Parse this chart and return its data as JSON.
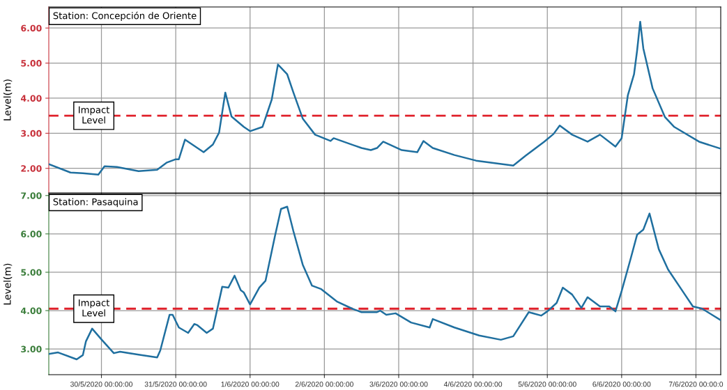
{
  "chart_data": [
    {
      "type": "line",
      "title": "Station: Concepción de Oriente",
      "ylabel": "Level(m)",
      "tick_labels": "y",
      "grid": true,
      "marker": "none",
      "line_style": "solid",
      "xlim": [
        "2020-05-29T07:00",
        "2020-06-07T08:00"
      ],
      "xticks": [
        {
          "value": "2020-05-30T00:00",
          "label": null
        },
        {
          "value": "2020-05-31T00:00",
          "label": null
        },
        {
          "value": "2020-06-01T00:00",
          "label": null
        },
        {
          "value": "2020-06-02T00:00",
          "label": null
        },
        {
          "value": "2020-06-03T00:00",
          "label": null
        },
        {
          "value": "2020-06-04T00:00",
          "label": null
        },
        {
          "value": "2020-06-05T00:00",
          "label": null
        },
        {
          "value": "2020-06-06T00:00",
          "label": null
        },
        {
          "value": "2020-06-07T00:00",
          "label": null
        }
      ],
      "ylim": [
        1.3,
        6.6
      ],
      "yticks": [
        {
          "value": 2,
          "label": "2.00"
        },
        {
          "value": 3,
          "label": "3.00"
        },
        {
          "value": 4,
          "label": "4.00"
        },
        {
          "value": 5,
          "label": "5.00"
        },
        {
          "value": 6,
          "label": "6.00"
        }
      ],
      "ref_lines": [
        {
          "axis": "y",
          "value": 3.5,
          "label": "Impact\nLevel",
          "color": "#e0202a",
          "line_style": "dashed"
        }
      ],
      "x": [
        "2020-05-29T07:00",
        "2020-05-29T14:00",
        "2020-05-29T18:00",
        "2020-05-29T23:00",
        "2020-05-30T01:00",
        "2020-05-30T05:00",
        "2020-05-30T12:00",
        "2020-05-30T18:00",
        "2020-05-30T21:00",
        "2020-05-31T00:00",
        "2020-05-31T01:00",
        "2020-05-31T03:00",
        "2020-05-31T09:00",
        "2020-05-31T12:00",
        "2020-05-31T14:00",
        "2020-05-31T16:00",
        "2020-05-31T18:00",
        "2020-05-31T22:00",
        "2020-06-01T00:00",
        "2020-06-01T04:00",
        "2020-06-01T07:00",
        "2020-06-01T09:00",
        "2020-06-01T12:00",
        "2020-06-01T14:00",
        "2020-06-01T17:00",
        "2020-06-01T21:00",
        "2020-06-02T02:00",
        "2020-06-02T03:00",
        "2020-06-02T12:00",
        "2020-06-02T15:00",
        "2020-06-02T17:00",
        "2020-06-02T19:00",
        "2020-06-03T01:00",
        "2020-06-03T06:00",
        "2020-06-03T08:00",
        "2020-06-03T11:00",
        "2020-06-03T18:00",
        "2020-06-04T01:00",
        "2020-06-04T13:00",
        "2020-06-04T17:00",
        "2020-06-04T23:00",
        "2020-06-05T02:00",
        "2020-06-05T04:00",
        "2020-06-05T08:00",
        "2020-06-05T13:00",
        "2020-06-05T17:00",
        "2020-06-05T22:00",
        "2020-06-06T00:00",
        "2020-06-06T02:00",
        "2020-06-06T04:00",
        "2020-06-06T05:00",
        "2020-06-06T06:00",
        "2020-06-06T07:00",
        "2020-06-06T10:00",
        "2020-06-06T14:00",
        "2020-06-06T17:00",
        "2020-06-07T01:00",
        "2020-06-07T08:00"
      ],
      "series": [
        {
          "color": "#1f6f9f",
          "values": [
            2.12,
            1.88,
            1.86,
            1.82,
            2.06,
            2.04,
            1.92,
            1.96,
            2.16,
            2.26,
            2.26,
            2.82,
            2.46,
            2.68,
            3.02,
            4.16,
            3.48,
            3.18,
            3.06,
            3.18,
            3.96,
            4.96,
            4.68,
            4.16,
            3.42,
            2.96,
            2.78,
            2.86,
            2.58,
            2.52,
            2.58,
            2.76,
            2.52,
            2.46,
            2.78,
            2.58,
            2.38,
            2.22,
            2.08,
            2.36,
            2.76,
            2.98,
            3.22,
            2.96,
            2.76,
            2.96,
            2.62,
            2.86,
            4.08,
            4.68,
            5.36,
            6.18,
            5.42,
            4.28,
            3.46,
            3.18,
            2.76,
            2.56
          ]
        }
      ]
    },
    {
      "type": "line",
      "title": "Station: Pasaquina",
      "ylabel": "Level(m)",
      "grid": true,
      "marker": "none",
      "line_style": "solid",
      "xlim": [
        "2020-05-29T07:00",
        "2020-06-07T08:00"
      ],
      "xticks": [
        {
          "value": "2020-05-30T00:00",
          "label": "30/5/2020 00:00:00"
        },
        {
          "value": "2020-05-31T00:00",
          "label": "31/5/2020 00:00:00"
        },
        {
          "value": "2020-06-01T00:00",
          "label": "1/6/2020 00:00:00"
        },
        {
          "value": "2020-06-02T00:00",
          "label": "2/6/2020 00:00:00"
        },
        {
          "value": "2020-06-03T00:00",
          "label": "3/6/2020 00:00:00"
        },
        {
          "value": "2020-06-04T00:00",
          "label": "4/6/2020 00:00:00"
        },
        {
          "value": "2020-06-05T00:00",
          "label": "5/6/2020 00:00:00"
        },
        {
          "value": "2020-06-06T00:00",
          "label": "6/6/2020 00:00:00"
        },
        {
          "value": "2020-06-07T00:00",
          "label": "7/6/2020 00:00:0"
        }
      ],
      "ylim": [
        2.33,
        7.05
      ],
      "yticks": [
        {
          "value": 3,
          "label": "3.00"
        },
        {
          "value": 4,
          "label": "4.00"
        },
        {
          "value": 5,
          "label": "5.00"
        },
        {
          "value": 6,
          "label": "6.00"
        },
        {
          "value": 7,
          "label": "7.00"
        }
      ],
      "ref_lines": [
        {
          "axis": "y",
          "value": 4.05,
          "label": "Impact\nLevel",
          "color": "#e0202a",
          "line_style": "dashed"
        }
      ],
      "x": [
        "2020-05-29T07:00",
        "2020-05-29T10:00",
        "2020-05-29T16:00",
        "2020-05-29T18:00",
        "2020-05-29T19:00",
        "2020-05-29T21:00",
        "2020-05-30T00:00",
        "2020-05-30T04:00",
        "2020-05-30T06:00",
        "2020-05-30T12:00",
        "2020-05-30T18:00",
        "2020-05-30T19:00",
        "2020-05-30T22:00",
        "2020-05-30T23:00",
        "2020-05-31T01:00",
        "2020-05-31T04:00",
        "2020-05-31T06:00",
        "2020-05-31T07:00",
        "2020-05-31T10:00",
        "2020-05-31T12:00",
        "2020-05-31T15:00",
        "2020-05-31T17:00",
        "2020-05-31T19:00",
        "2020-05-31T21:00",
        "2020-05-31T22:00",
        "2020-06-01T00:00",
        "2020-06-01T03:00",
        "2020-06-01T05:00",
        "2020-06-01T08:00",
        "2020-06-01T10:00",
        "2020-06-01T12:00",
        "2020-06-01T14:00",
        "2020-06-01T17:00",
        "2020-06-01T20:00",
        "2020-06-01T23:00",
        "2020-06-02T04:00",
        "2020-06-02T09:00",
        "2020-06-02T12:00",
        "2020-06-02T17:00",
        "2020-06-02T18:00",
        "2020-06-02T20:00",
        "2020-06-02T23:00",
        "2020-06-03T04:00",
        "2020-06-03T10:00",
        "2020-06-03T11:00",
        "2020-06-03T18:00",
        "2020-06-04T02:00",
        "2020-06-04T09:00",
        "2020-06-04T13:00",
        "2020-06-04T18:00",
        "2020-06-04T22:00",
        "2020-06-05T00:00",
        "2020-06-05T03:00",
        "2020-06-05T05:00",
        "2020-06-05T08:00",
        "2020-06-05T11:00",
        "2020-06-05T13:00",
        "2020-06-05T17:00",
        "2020-06-05T20:00",
        "2020-06-05T22:00",
        "2020-06-06T00:00",
        "2020-06-06T03:00",
        "2020-06-06T05:00",
        "2020-06-06T07:00",
        "2020-06-06T09:00",
        "2020-06-06T12:00",
        "2020-06-06T15:00",
        "2020-06-06T20:00",
        "2020-06-06T23:00",
        "2020-06-07T02:00",
        "2020-06-07T08:00"
      ],
      "series": [
        {
          "color": "#1f6f9f",
          "values": [
            2.87,
            2.91,
            2.73,
            2.84,
            3.2,
            3.53,
            3.25,
            2.89,
            2.93,
            2.85,
            2.78,
            2.96,
            3.89,
            3.89,
            3.56,
            3.42,
            3.65,
            3.62,
            3.42,
            3.53,
            4.62,
            4.6,
            4.91,
            4.53,
            4.47,
            4.16,
            4.6,
            4.78,
            5.93,
            6.65,
            6.71,
            6.07,
            5.2,
            4.65,
            4.56,
            4.24,
            4.05,
            3.96,
            3.96,
            4.0,
            3.89,
            3.93,
            3.69,
            3.56,
            3.78,
            3.56,
            3.35,
            3.24,
            3.33,
            3.96,
            3.87,
            3.98,
            4.2,
            4.6,
            4.42,
            4.07,
            4.35,
            4.11,
            4.11,
            3.98,
            4.51,
            5.38,
            5.98,
            6.11,
            6.53,
            5.6,
            5.07,
            4.47,
            4.11,
            4.05,
            3.75
          ]
        }
      ]
    }
  ]
}
